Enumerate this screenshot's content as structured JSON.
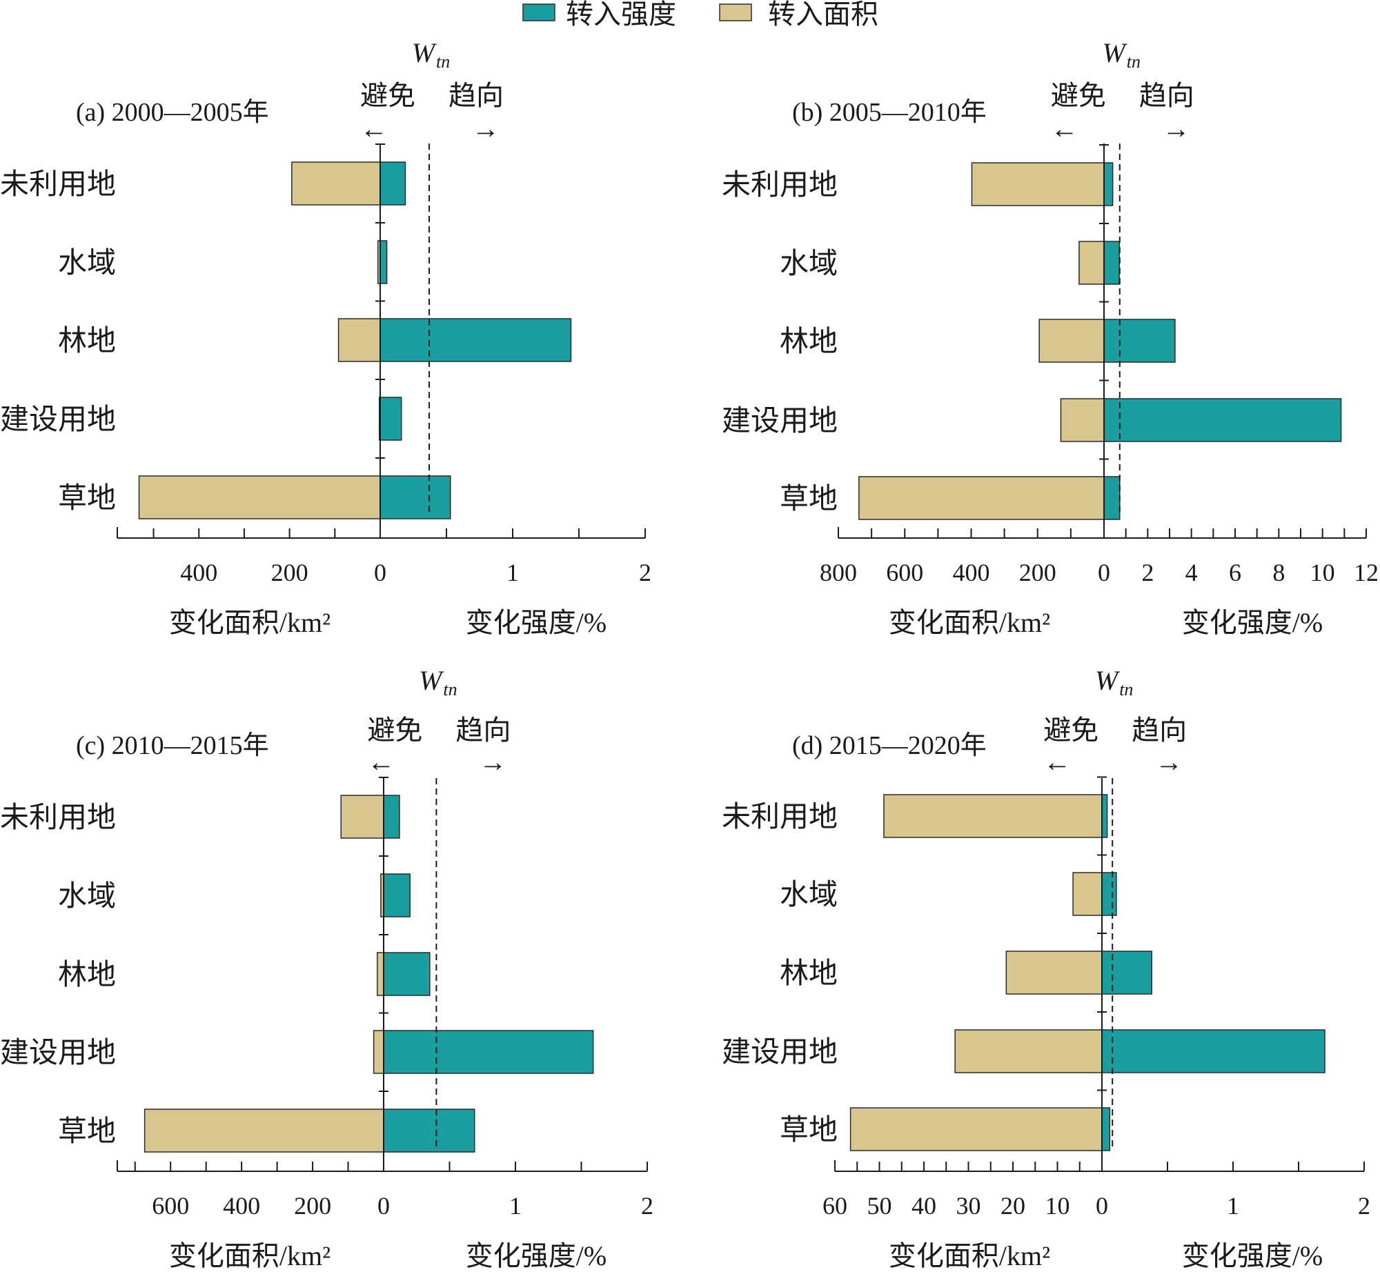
{
  "legend": {
    "items": [
      {
        "label": "转入强度",
        "color": "#1b9ea0"
      },
      {
        "label": "转入面积",
        "color": "#d8c68e"
      }
    ]
  },
  "chart_data": [
    {
      "type": "bar",
      "title": "(a) 2000—2005年",
      "categories": [
        "未利用地",
        "水域",
        "林地",
        "建设用地",
        "草地"
      ],
      "series": [
        {
          "name": "转入面积",
          "unit": "km2",
          "values": [
            195,
            5,
            92,
            2,
            532
          ]
        },
        {
          "name": "转入强度",
          "unit": "%",
          "values": [
            0.19,
            0.05,
            1.44,
            0.16,
            0.53
          ]
        }
      ],
      "threshold": {
        "label": "W",
        "label_sub": "tn",
        "value": 0.37
      },
      "direction_labels": {
        "left": "避免",
        "right": "趋向",
        "left_arrow": "←",
        "right_arrow": "→"
      },
      "area_axis": {
        "label": "变化面积/km²",
        "max": 580,
        "major_ticks": [
          400,
          200,
          0
        ],
        "minor_step": 100
      },
      "intensity_axis": {
        "label": "变化强度/%",
        "max": 2,
        "major_ticks": [
          1,
          2
        ],
        "minor_step": 0.5
      }
    },
    {
      "type": "bar",
      "title": "(b) 2005—2010年",
      "categories": [
        "未利用地",
        "水域",
        "林地",
        "建设用地",
        "草地"
      ],
      "series": [
        {
          "name": "转入面积",
          "unit": "km2",
          "values": [
            398,
            75,
            195,
            130,
            738
          ]
        },
        {
          "name": "转入强度",
          "unit": "%",
          "values": [
            0.4,
            0.7,
            3.25,
            10.85,
            0.72
          ]
        }
      ],
      "threshold": {
        "label": "W",
        "label_sub": "tn",
        "value": 0.72
      },
      "direction_labels": {
        "left": "避免",
        "right": "趋向",
        "left_arrow": "←",
        "right_arrow": "→"
      },
      "area_axis": {
        "label": "变化面积/km²",
        "max": 800,
        "major_ticks": [
          800,
          600,
          400,
          200,
          0
        ],
        "minor_step": 100
      },
      "intensity_axis": {
        "label": "变化强度/%",
        "max": 12,
        "major_ticks": [
          2,
          4,
          6,
          8,
          10,
          12
        ],
        "minor_step": 1
      }
    },
    {
      "type": "bar",
      "title": "(c) 2010—2015年",
      "categories": [
        "未利用地",
        "水域",
        "林地",
        "建设用地",
        "草地"
      ],
      "series": [
        {
          "name": "转入面积",
          "unit": "km2",
          "values": [
            120,
            8,
            18,
            28,
            673
          ]
        },
        {
          "name": "转入强度",
          "unit": "%",
          "values": [
            0.12,
            0.2,
            0.35,
            1.59,
            0.69
          ]
        }
      ],
      "threshold": {
        "label": "W",
        "label_sub": "tn",
        "value": 0.4
      },
      "direction_labels": {
        "left": "避免",
        "right": "趋向",
        "left_arrow": "←",
        "right_arrow": "→"
      },
      "area_axis": {
        "label": "变化面积/km²",
        "max": 750,
        "major_ticks": [
          600,
          400,
          200,
          0
        ],
        "minor_step": 100
      },
      "intensity_axis": {
        "label": "变化强度/%",
        "max": 2,
        "major_ticks": [
          1,
          2
        ],
        "minor_step": 0.5
      }
    },
    {
      "type": "bar",
      "title": "(d) 2015—2020年",
      "categories": [
        "未利用地",
        "水域",
        "林地",
        "建设用地",
        "草地"
      ],
      "series": [
        {
          "name": "转入面积",
          "unit": "km2",
          "values": [
            49,
            6.5,
            21.5,
            33,
            56.5
          ]
        },
        {
          "name": "转入强度",
          "unit": "%",
          "values": [
            0.04,
            0.11,
            0.38,
            1.7,
            0.06
          ]
        }
      ],
      "threshold": {
        "label": "W",
        "label_sub": "tn",
        "value": 0.08
      },
      "direction_labels": {
        "left": "避免",
        "right": "趋向",
        "left_arrow": "←",
        "right_arrow": "→"
      },
      "area_axis": {
        "label": "变化面积/km²",
        "max": 60,
        "major_ticks": [
          60,
          50,
          40,
          30,
          20,
          10,
          0
        ],
        "minor_step": 5
      },
      "intensity_axis": {
        "label": "变化强度/%",
        "max": 2,
        "major_ticks": [
          1,
          2
        ],
        "minor_step": 0.5
      }
    }
  ]
}
